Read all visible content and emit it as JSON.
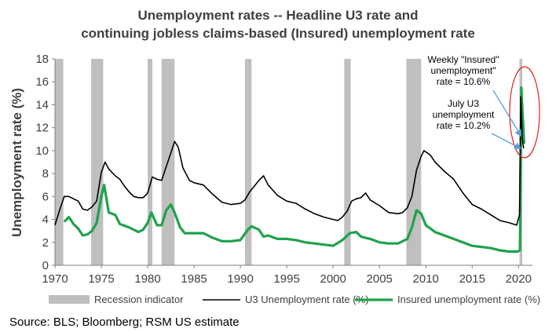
{
  "chart_data": {
    "type": "line",
    "title_lines": [
      "Unemployment rates -- Headline U3 rate and",
      "continuing jobless claims-based (Insured) unemployment rate"
    ],
    "ylabel": "Unemployment rate (%)",
    "xlabel": "",
    "xlim": [
      1970,
      2021.5
    ],
    "ylim": [
      0,
      18
    ],
    "x_ticks": [
      1970,
      1975,
      1980,
      1985,
      1990,
      1995,
      2000,
      2005,
      2010,
      2015,
      2020
    ],
    "y_ticks": [
      0,
      2,
      4,
      6,
      8,
      10,
      12,
      14,
      16,
      18
    ],
    "grid": false,
    "legend_position": "bottom",
    "colors": {
      "recession": "#bfbfbf",
      "u3": "#000000",
      "insured": "#1fa24a",
      "annotation_arrow": "#5b9bd5",
      "highlight_ellipse": "#e02020"
    },
    "recessions": [
      [
        1970.0,
        1970.9
      ],
      [
        1973.9,
        1975.2
      ],
      [
        1980.0,
        1980.5
      ],
      [
        1981.5,
        1982.9
      ],
      [
        1990.5,
        1991.2
      ],
      [
        2001.2,
        2001.9
      ],
      [
        2007.9,
        2009.5
      ],
      [
        2020.1,
        2020.4
      ]
    ],
    "series": [
      {
        "name": "U3 Unemployment rate (%)",
        "x": [
          1970.0,
          1970.5,
          1971.0,
          1971.5,
          1972.0,
          1972.5,
          1973.0,
          1973.5,
          1974.0,
          1974.5,
          1975.0,
          1975.4,
          1975.8,
          1976.5,
          1977.0,
          1977.5,
          1978.0,
          1978.5,
          1979.0,
          1979.5,
          1980.0,
          1980.5,
          1981.0,
          1981.5,
          1982.0,
          1982.5,
          1982.9,
          1983.3,
          1983.8,
          1984.5,
          1985.0,
          1986.0,
          1987.0,
          1988.0,
          1989.0,
          1990.0,
          1990.5,
          1991.0,
          1991.5,
          1992.0,
          1992.5,
          1993.0,
          1994.0,
          1995.0,
          1996.0,
          1997.0,
          1998.0,
          1999.0,
          2000.0,
          2000.5,
          2001.0,
          2001.5,
          2002.0,
          2002.5,
          2003.0,
          2003.5,
          2004.0,
          2005.0,
          2006.0,
          2007.0,
          2007.5,
          2008.0,
          2008.5,
          2009.0,
          2009.5,
          2009.8,
          2010.5,
          2011.0,
          2012.0,
          2013.0,
          2014.0,
          2015.0,
          2016.0,
          2017.0,
          2018.0,
          2019.0,
          2019.8,
          2020.1,
          2020.25,
          2020.4,
          2020.55
        ],
        "y": [
          3.5,
          4.8,
          6.0,
          6.0,
          5.8,
          5.6,
          4.9,
          4.8,
          5.1,
          5.6,
          8.1,
          9.0,
          8.4,
          7.8,
          7.5,
          6.9,
          6.4,
          6.0,
          5.9,
          5.9,
          6.3,
          7.7,
          7.5,
          7.4,
          8.6,
          9.8,
          10.8,
          10.3,
          8.5,
          7.4,
          7.2,
          7.0,
          6.2,
          5.5,
          5.3,
          5.4,
          5.7,
          6.4,
          6.9,
          7.4,
          7.8,
          7.0,
          6.1,
          5.6,
          5.4,
          4.9,
          4.5,
          4.2,
          4.0,
          3.9,
          4.2,
          4.7,
          5.6,
          5.8,
          5.9,
          6.3,
          5.7,
          5.2,
          4.6,
          4.5,
          4.6,
          5.0,
          6.0,
          8.3,
          9.5,
          10.0,
          9.6,
          9.0,
          8.2,
          7.5,
          6.3,
          5.3,
          4.9,
          4.4,
          3.9,
          3.7,
          3.5,
          4.4,
          14.7,
          11.1,
          10.2
        ]
      },
      {
        "name": "Insured unemployment rate (%)",
        "x": [
          1971.0,
          1971.5,
          1972.0,
          1972.5,
          1973.0,
          1973.5,
          1974.0,
          1974.5,
          1975.0,
          1975.3,
          1975.8,
          1976.5,
          1977.0,
          1978.0,
          1979.0,
          1979.5,
          1980.0,
          1980.4,
          1981.0,
          1981.5,
          1982.0,
          1982.5,
          1982.9,
          1983.5,
          1984.0,
          1985.0,
          1986.0,
          1987.0,
          1988.0,
          1989.0,
          1990.0,
          1990.8,
          1991.2,
          1992.0,
          1992.5,
          1993.0,
          1994.0,
          1995.0,
          1996.0,
          1997.0,
          1998.0,
          1999.0,
          2000.0,
          2001.0,
          2001.8,
          2002.5,
          2003.0,
          2004.0,
          2005.0,
          2006.0,
          2007.0,
          2008.0,
          2008.5,
          2009.0,
          2009.5,
          2010.0,
          2010.5,
          2011.0,
          2012.0,
          2013.0,
          2014.0,
          2015.0,
          2016.0,
          2017.0,
          2018.0,
          2019.0,
          2019.9,
          2020.15,
          2020.3,
          2020.45,
          2020.6
        ],
        "y": [
          3.8,
          4.2,
          3.6,
          3.2,
          2.6,
          2.7,
          3.0,
          3.7,
          6.0,
          7.0,
          4.6,
          4.4,
          3.6,
          3.3,
          2.9,
          3.1,
          3.7,
          4.6,
          3.5,
          3.5,
          4.8,
          5.3,
          4.6,
          3.3,
          2.8,
          2.8,
          2.8,
          2.4,
          2.1,
          2.1,
          2.2,
          3.1,
          3.4,
          3.1,
          2.5,
          2.6,
          2.3,
          2.3,
          2.2,
          2.0,
          1.9,
          1.8,
          1.7,
          2.2,
          2.8,
          2.9,
          2.5,
          2.3,
          2.0,
          1.9,
          1.9,
          2.3,
          3.3,
          4.8,
          4.5,
          3.5,
          3.2,
          2.9,
          2.6,
          2.3,
          2.0,
          1.7,
          1.6,
          1.5,
          1.3,
          1.2,
          1.2,
          1.3,
          15.5,
          13.0,
          10.6
        ]
      },
      {
        "name": "Recession indicator",
        "type": "bar",
        "note": ""
      }
    ],
    "annotations": [
      {
        "lines": [
          "Weekly \"Insured\"",
          "unemployment\"",
          "rate = 10.6%"
        ],
        "target": [
          2020.6,
          11.3
        ]
      },
      {
        "lines": [
          "July U3",
          "unemployment",
          "rate = 10.2%"
        ],
        "target": [
          2020.55,
          10.2
        ]
      }
    ]
  },
  "source": "Source: BLS; Bloomberg; RSM US estimate"
}
